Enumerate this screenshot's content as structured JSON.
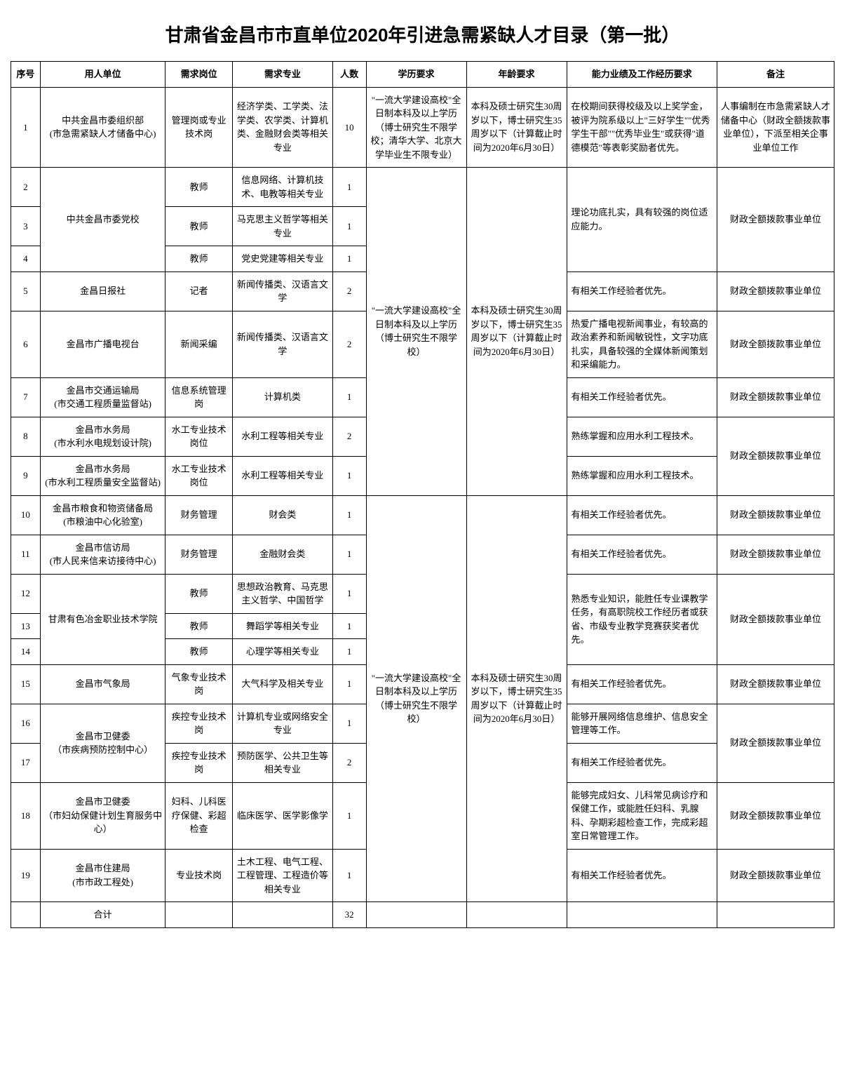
{
  "title": "甘肃省金昌市市直单位2020年引进急需紧缺人才目录（第一批）",
  "headers": {
    "seq": "序号",
    "unit": "用人单位",
    "post": "需求岗位",
    "major": "需求专业",
    "num": "人数",
    "edu": "学历要求",
    "age": "年龄要求",
    "req": "能力业绩及工作经历要求",
    "note": "备注"
  },
  "edu1": "\"一流大学建设高校\"全日制本科及以上学历（博士研究生不限学校；清华大学、北京大学毕业生不限专业）",
  "edu2": "\"一流大学建设高校\"全日制本科及以上学历（博士研究生不限学校）",
  "edu3": "\"一流大学建设高校\"全日制本科及以上学历（博士研究生不限学校）",
  "age1": "本科及硕士研究生30周岁以下，博士研究生35周岁以下（计算截止时间为2020年6月30日）",
  "age2": "本科及硕士研究生30周岁以下，博士研究生35周岁以下（计算截止时间为2020年6月30日）",
  "age3": "本科及硕士研究生30周岁以下，博士研究生35周岁以下（计算截止时间为2020年6月30日）",
  "r1": {
    "seq": "1",
    "unit": "中共金昌市委组织部\n(市急需紧缺人才储备中心)",
    "post": "管理岗或专业技术岗",
    "major": "经济学类、工学类、法学类、农学类、计算机类、金融财会类等相关专业",
    "num": "10",
    "req": "在校期间获得校级及以上奖学金，被评为院系级以上\"三好学生\"\"优秀学生干部\"\"优秀毕业生\"或获得\"道德模范\"等表彰奖励者优先。",
    "note": "人事编制在市急需紧缺人才储备中心（财政全额拨款事业单位），下派至相关企事业单位工作"
  },
  "r2": {
    "seq": "2",
    "post": "教师",
    "major": "信息网络、计算机技术、电教等相关专业",
    "num": "1"
  },
  "r3": {
    "seq": "3",
    "unit": "中共金昌市委党校",
    "post": "教师",
    "major": "马克思主义哲学等相关专业",
    "num": "1",
    "req": "理论功底扎实，具有较强的岗位适应能力。",
    "note": "财政全额拨款事业单位"
  },
  "r4": {
    "seq": "4",
    "post": "教师",
    "major": "党史党建等相关专业",
    "num": "1"
  },
  "r5": {
    "seq": "5",
    "unit": "金昌日报社",
    "post": "记者",
    "major": "新闻传播类、汉语言文学",
    "num": "2",
    "req": "有相关工作经验者优先。",
    "note": "财政全额拨款事业单位"
  },
  "r6": {
    "seq": "6",
    "unit": "金昌市广播电视台",
    "post": "新闻采编",
    "major": "新闻传播类、汉语言文学",
    "num": "2",
    "req": "热爱广播电视新闻事业，有较高的政治素养和新闻敏锐性，文字功底扎实，具备较强的全媒体新闻策划和采编能力。",
    "note": "财政全额拨款事业单位"
  },
  "r7": {
    "seq": "7",
    "unit": "金昌市交通运输局\n(市交通工程质量监督站)",
    "post": "信息系统管理岗",
    "major": "计算机类",
    "num": "1",
    "req": "有相关工作经验者优先。",
    "note": "财政全额拨款事业单位"
  },
  "r8": {
    "seq": "8",
    "unit": "金昌市水务局\n(市水利水电规划设计院)",
    "post": "水工专业技术岗位",
    "major": "水利工程等相关专业",
    "num": "2",
    "req": "熟练掌握和应用水利工程技术。",
    "note": "财政全额拨款事业单位"
  },
  "r9": {
    "seq": "9",
    "unit": "金昌市水务局\n(市水利工程质量安全监督站)",
    "post": "水工专业技术岗位",
    "major": "水利工程等相关专业",
    "num": "1",
    "req": "熟练掌握和应用水利工程技术。"
  },
  "r10": {
    "seq": "10",
    "unit": "金昌市粮食和物资储备局\n(市粮油中心化验室)",
    "post": "财务管理",
    "major": "财会类",
    "num": "1",
    "req": "有相关工作经验者优先。",
    "note": "财政全额拨款事业单位"
  },
  "r11": {
    "seq": "11",
    "unit": "金昌市信访局\n(市人民来信来访接待中心)",
    "post": "财务管理",
    "major": "金融财会类",
    "num": "1",
    "req": "有相关工作经验者优先。",
    "note": "财政全额拨款事业单位"
  },
  "r12": {
    "seq": "12",
    "post": "教师",
    "major": "思想政治教育、马克思主义哲学、中国哲学",
    "num": "1"
  },
  "r13": {
    "seq": "13",
    "unit": "甘肃有色冶金职业技术学院",
    "post": "教师",
    "major": "舞蹈学等相关专业",
    "num": "1",
    "req": "熟悉专业知识，能胜任专业课教学任务，有高职院校工作经历者或获省、市级专业教学竞赛获奖者优先。",
    "note": "财政全额拨款事业单位"
  },
  "r14": {
    "seq": "14",
    "post": "教师",
    "major": "心理学等相关专业",
    "num": "1"
  },
  "r15": {
    "seq": "15",
    "unit": "金昌市气象局",
    "post": "气象专业技术岗",
    "major": "大气科学及相关专业",
    "num": "1",
    "req": "有相关工作经验者优先。",
    "note": "财政全额拨款事业单位"
  },
  "r16": {
    "seq": "16",
    "unit": "金昌市卫健委\n（市疾病预防控制中心）",
    "post": "疾控专业技术岗",
    "major": "计算机专业或网络安全专业",
    "num": "1",
    "req": "能够开展网络信息维护、信息安全管理等工作。",
    "note": "财政全额拨款事业单位"
  },
  "r17": {
    "seq": "17",
    "post": "疾控专业技术岗",
    "major": "预防医学、公共卫生等相关专业",
    "num": "2",
    "req": "有相关工作经验者优先。"
  },
  "r18": {
    "seq": "18",
    "unit": "金昌市卫健委\n（市妇幼保健计划生育服务中心）",
    "post": "妇科、儿科医疗保健、彩超检查",
    "major": "临床医学、医学影像学",
    "num": "1",
    "req": "能够完成妇女、儿科常见病诊疗和保健工作，或能胜任妇科、乳腺科、孕期彩超检查工作，完成彩超室日常管理工作。",
    "note": "财政全额拨款事业单位"
  },
  "r19": {
    "seq": "19",
    "unit": "金昌市住建局\n(市市政工程处)",
    "post": "专业技术岗",
    "major": "土木工程、电气工程、工程管理、工程造价等相关专业",
    "num": "1",
    "req": "有相关工作经验者优先。",
    "note": "财政全额拨款事业单位"
  },
  "total": {
    "label": "合计",
    "num": "32"
  }
}
